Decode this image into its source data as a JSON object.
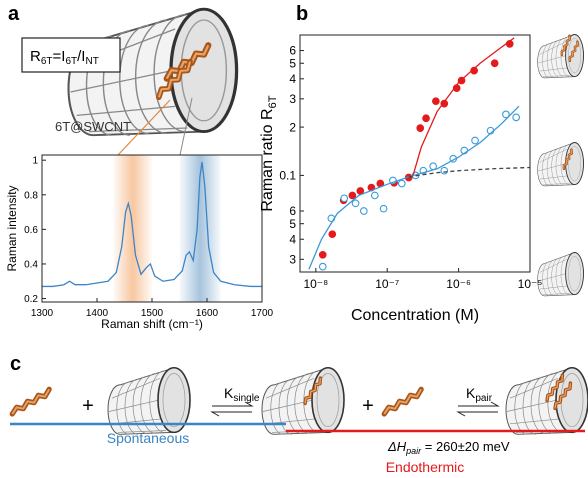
{
  "panel_labels": [
    "a",
    "b",
    "c"
  ],
  "annotations": {
    "formula": [
      {
        "t": "R",
        "sub": "6T"
      },
      {
        "t": "=I",
        "sub": "6T"
      },
      {
        "t": "/I",
        "sub": "NT"
      }
    ],
    "sample": "6T@SWCNT"
  },
  "scheme": {
    "plus": [
      "+",
      "+"
    ],
    "k_single": {
      "t": "K",
      "sub": "single"
    },
    "k_pair": {
      "t": "K",
      "sub": "pair"
    },
    "dH": {
      "t": "ΔH",
      "sub": "pair",
      "rest": " = 260±20 meV"
    },
    "spontaneous": "Spontaneous",
    "endothermic": "Endothermic"
  },
  "chart_data": [
    {
      "type": "line",
      "xlabel": "Raman shift (cm⁻¹)",
      "ylabel": "Raman intensity",
      "color": "#3d85c6",
      "x": [
        1300,
        1320,
        1340,
        1350,
        1360,
        1380,
        1400,
        1420,
        1435,
        1445,
        1452,
        1457,
        1462,
        1470,
        1480,
        1490,
        1497,
        1505,
        1520,
        1540,
        1555,
        1562,
        1568,
        1575,
        1582,
        1587,
        1591,
        1596,
        1603,
        1612,
        1625,
        1650,
        1680,
        1700
      ],
      "values": [
        0.27,
        0.27,
        0.28,
        0.3,
        0.28,
        0.28,
        0.29,
        0.3,
        0.35,
        0.5,
        0.7,
        0.75,
        0.68,
        0.45,
        0.34,
        0.38,
        0.4,
        0.33,
        0.3,
        0.31,
        0.36,
        0.45,
        0.47,
        0.42,
        0.6,
        0.9,
        0.99,
        0.85,
        0.5,
        0.35,
        0.3,
        0.28,
        0.27,
        0.27
      ],
      "xlim": [
        1300,
        1700
      ],
      "ylim": [
        0.18,
        1.03
      ],
      "xticks": [
        1300,
        1400,
        1500,
        1600,
        1700
      ],
      "yticks": [
        0.2,
        0.4,
        0.6,
        0.8,
        1
      ],
      "bands": [
        {
          "xrange": [
            1430,
            1500
          ],
          "color": "#f2a262"
        },
        {
          "xrange": [
            1550,
            1625
          ],
          "color": "#6b9cc6"
        }
      ]
    },
    {
      "type": "scatter",
      "xlabel": "Concentration (M)",
      "ylabel": "Raman ratio R",
      "ylabel_sub": "6T",
      "xscale": "log",
      "yscale": "log",
      "xlim": [
        6e-09,
        1e-05
      ],
      "ylim": [
        0.025,
        0.75
      ],
      "xticks": [
        {
          "value": 1e-08,
          "label": "10⁻⁸"
        },
        {
          "value": 1e-07,
          "label": "10⁻⁷"
        },
        {
          "value": 1e-06,
          "label": "10⁻⁶"
        },
        {
          "value": 1e-05,
          "label": "10⁻⁵"
        }
      ],
      "yticks": [
        {
          "value": 0.03,
          "label": "3"
        },
        {
          "value": 0.04,
          "label": "4"
        },
        {
          "value": 0.05,
          "label": "5"
        },
        {
          "value": 0.06,
          "label": "6"
        },
        0.1,
        {
          "value": 0.2,
          "label": "2"
        },
        {
          "value": 0.3,
          "label": "3"
        },
        {
          "value": 0.4,
          "label": "4"
        },
        {
          "value": 0.5,
          "label": "5"
        },
        {
          "value": 0.6,
          "label": "6"
        }
      ],
      "series": [
        {
          "marker": "filled",
          "color": "#e41a1c",
          "x": [
            1.25e-08,
            1.7e-08,
            2.45e-08,
            3.25e-08,
            4.2e-08,
            6e-08,
            8e-08,
            1.25e-07,
            2e-07,
            2.9e-07,
            3.5e-07,
            4.8e-07,
            6.3e-07,
            9.4e-07,
            1.1e-06,
            1.65e-06,
            3.2e-06,
            5.2e-06
          ],
          "values": [
            0.032,
            0.043,
            0.07,
            0.075,
            0.08,
            0.084,
            0.089,
            0.09,
            0.097,
            0.197,
            0.227,
            0.29,
            0.28,
            0.35,
            0.39,
            0.45,
            0.5,
            0.66
          ]
        },
        {
          "marker": "open",
          "color": "#3a9ad9",
          "x": [
            1.25e-08,
            1.65e-08,
            2.5e-08,
            3.6e-08,
            4.7e-08,
            6.7e-08,
            8.9e-08,
            1.2e-07,
            1.6e-07,
            2.5e-07,
            3.2e-07,
            4.4e-07,
            6.3e-07,
            8.4e-07,
            1.2e-06,
            1.7e-06,
            2.8e-06,
            4.6e-06,
            6.4e-06
          ],
          "values": [
            0.027,
            0.054,
            0.072,
            0.067,
            0.06,
            0.075,
            0.062,
            0.093,
            0.089,
            0.1,
            0.107,
            0.114,
            0.107,
            0.127,
            0.143,
            0.165,
            0.19,
            0.24,
            0.23
          ]
        },
        {
          "line": "solid",
          "color": "#e41a1c",
          "x": [
            2.3e-07,
            3e-07,
            5e-07,
            1e-06,
            2e-06,
            4e-06,
            6e-06
          ],
          "values": [
            0.1,
            0.15,
            0.25,
            0.38,
            0.5,
            0.63,
            0.72
          ]
        },
        {
          "line": "solid",
          "color": "#3a9ad9",
          "x": [
            8e-09,
            1.2e-08,
            2e-08,
            4e-08,
            1e-07,
            2e-07,
            5e-07,
            1e-06,
            2e-06,
            4e-06,
            7e-06
          ],
          "values": [
            0.026,
            0.04,
            0.058,
            0.075,
            0.088,
            0.098,
            0.11,
            0.13,
            0.16,
            0.21,
            0.27
          ]
        },
        {
          "line": "dashed",
          "color": "#444444",
          "x": [
            2e-07,
            5e-07,
            1e-06,
            3e-06,
            1e-05
          ],
          "values": [
            0.098,
            0.104,
            0.107,
            0.11,
            0.112
          ]
        }
      ]
    }
  ]
}
